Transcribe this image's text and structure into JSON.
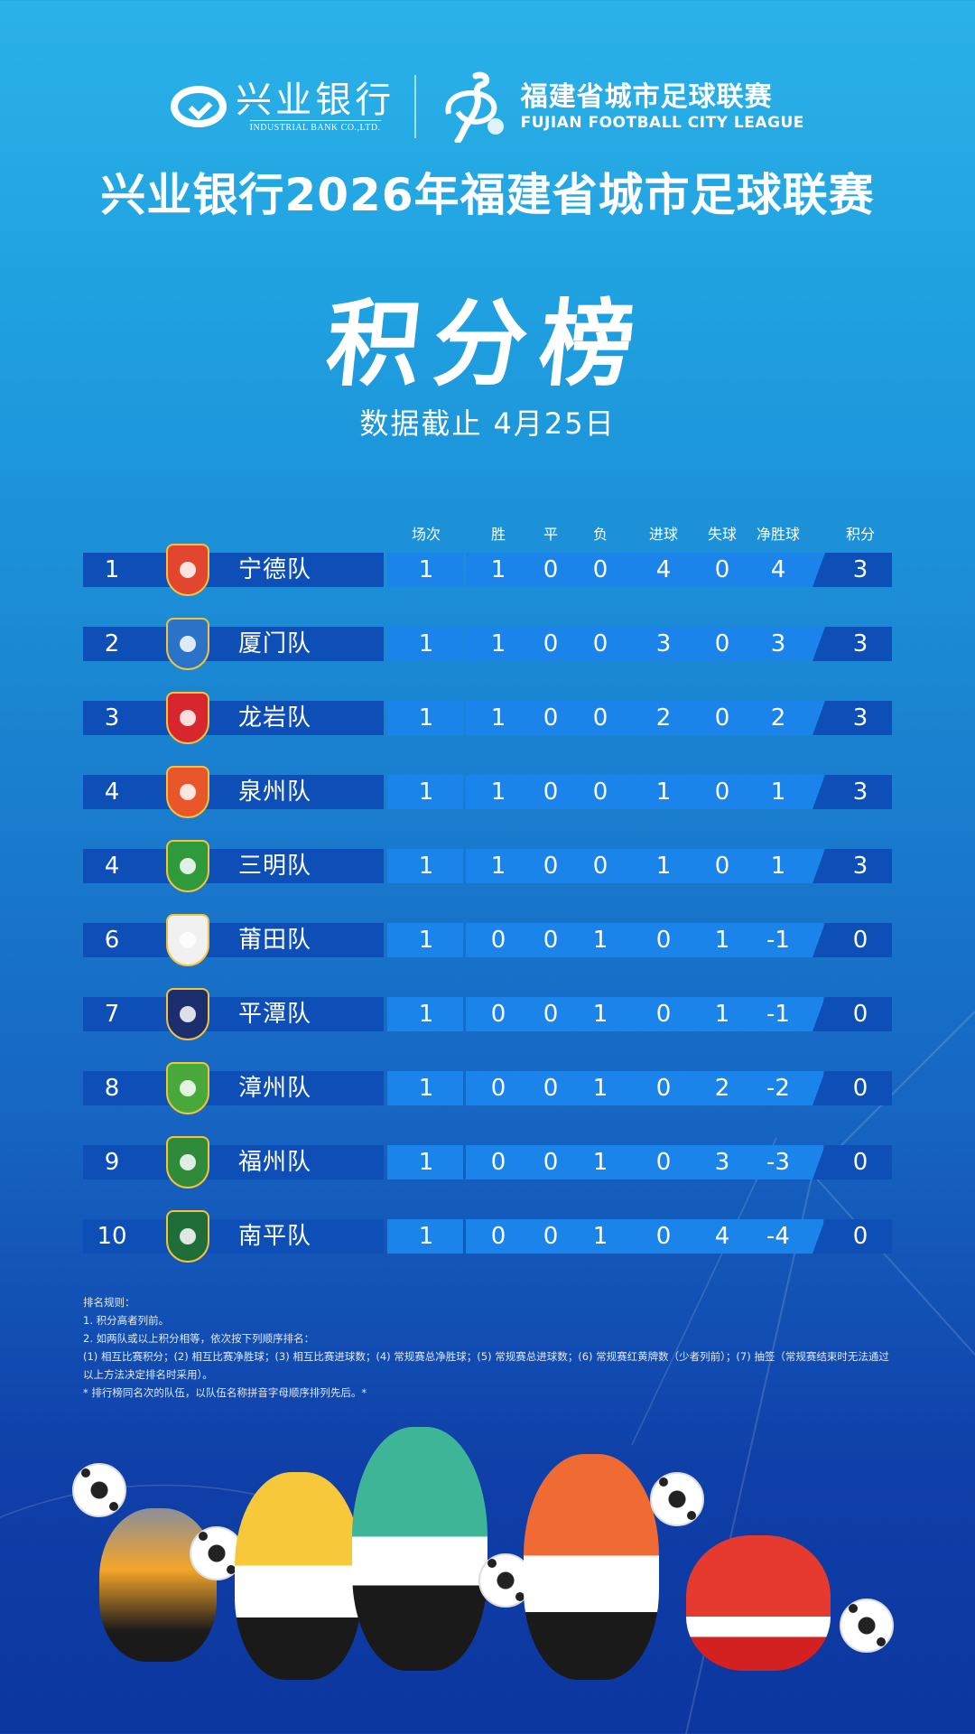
{
  "header": {
    "bank_logo_cn": "兴业银行",
    "bank_logo_en": "INDUSTRIAL BANK CO.,LTD.",
    "league_logo_cn": "福建省城市足球联赛",
    "league_logo_en": "FUJIAN FOOTBALL CITY LEAGUE",
    "title": "兴业银行2026年福建省城市足球联赛",
    "subtitle": "积分榜",
    "date_note": "数据截止 4月25日"
  },
  "table": {
    "columns": [
      "场次",
      "胜",
      "平",
      "负",
      "进球",
      "失球",
      "净胜球",
      "积分"
    ],
    "rows": [
      {
        "rank": "1",
        "team": "宁德队",
        "crest_color": "#e2462e",
        "played": "1",
        "won": "1",
        "drawn": "0",
        "lost": "0",
        "gf": "4",
        "ga": "0",
        "gd": "4",
        "pts": "3"
      },
      {
        "rank": "2",
        "team": "厦门队",
        "crest_color": "#2a73c8",
        "played": "1",
        "won": "1",
        "drawn": "0",
        "lost": "0",
        "gf": "3",
        "ga": "0",
        "gd": "3",
        "pts": "3"
      },
      {
        "rank": "3",
        "team": "龙岩队",
        "crest_color": "#d8262e",
        "played": "1",
        "won": "1",
        "drawn": "0",
        "lost": "0",
        "gf": "2",
        "ga": "0",
        "gd": "2",
        "pts": "3"
      },
      {
        "rank": "4",
        "team": "泉州队",
        "crest_color": "#e8562a",
        "played": "1",
        "won": "1",
        "drawn": "0",
        "lost": "0",
        "gf": "1",
        "ga": "0",
        "gd": "1",
        "pts": "3"
      },
      {
        "rank": "4",
        "team": "三明队",
        "crest_color": "#2e9a3c",
        "played": "1",
        "won": "1",
        "drawn": "0",
        "lost": "0",
        "gf": "1",
        "ga": "0",
        "gd": "1",
        "pts": "3"
      },
      {
        "rank": "6",
        "team": "莆田队",
        "crest_color": "#f1f1f1",
        "played": "1",
        "won": "0",
        "drawn": "0",
        "lost": "1",
        "gf": "0",
        "ga": "1",
        "gd": "-1",
        "pts": "0"
      },
      {
        "rank": "7",
        "team": "平潭队",
        "crest_color": "#1c2e6e",
        "played": "1",
        "won": "0",
        "drawn": "0",
        "lost": "1",
        "gf": "0",
        "ga": "1",
        "gd": "-1",
        "pts": "0"
      },
      {
        "rank": "8",
        "team": "漳州队",
        "crest_color": "#48a83a",
        "played": "1",
        "won": "0",
        "drawn": "0",
        "lost": "1",
        "gf": "0",
        "ga": "2",
        "gd": "-2",
        "pts": "0"
      },
      {
        "rank": "9",
        "team": "福州队",
        "crest_color": "#2f8a3a",
        "played": "1",
        "won": "0",
        "drawn": "0",
        "lost": "1",
        "gf": "0",
        "ga": "3",
        "gd": "-3",
        "pts": "0"
      },
      {
        "rank": "10",
        "team": "南平队",
        "crest_color": "#1f6e3a",
        "played": "1",
        "won": "0",
        "drawn": "0",
        "lost": "1",
        "gf": "0",
        "ga": "4",
        "gd": "-4",
        "pts": "0"
      }
    ]
  },
  "rules": {
    "heading": "排名规则：",
    "line1": "1. 积分高者列前。",
    "line2": "2. 如两队或以上积分相等，依次按下列顺序排名：",
    "line3": "(1) 相互比赛积分；(2) 相互比赛净胜球；(3) 相互比赛进球数；(4) 常规赛总净胜球；(5) 常规赛总进球数；(6) 常规赛红黄牌数（少者列前）；(7) 抽签（常规赛结束时无法通过以上方法决定排名时采用）。",
    "line4": "* 排行榜同名次的队伍，以队伍名称拼音字母顺序排列先后。*"
  },
  "colors": {
    "row_dark": "#0d4fb7",
    "row_light": "#1a84ea",
    "bg_top": "#2bb2e8",
    "bg_bottom": "#0c36a0"
  },
  "mascots": [
    "bird-mascot",
    "tiger-mascot",
    "dragon-mascot",
    "lion-mascot",
    "crab-mascot"
  ]
}
